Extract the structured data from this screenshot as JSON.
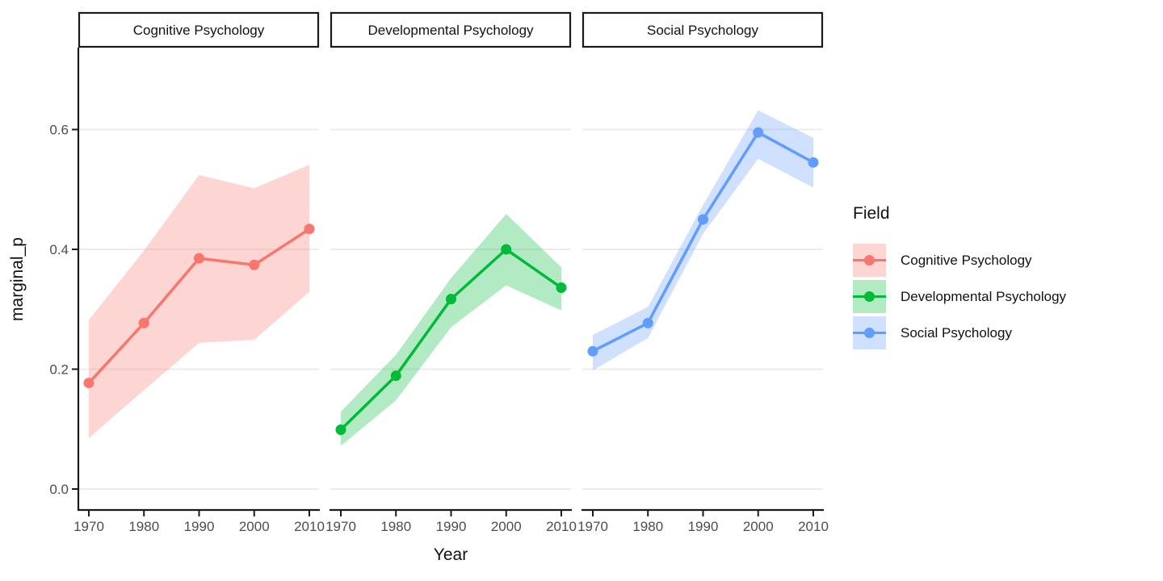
{
  "figure": {
    "background": "#FFFFFF"
  },
  "axes": {
    "x_label": "Year",
    "y_label": "marginal_p",
    "x_tick_labels": [
      "1970",
      "1980",
      "1990",
      "2000",
      "2010"
    ],
    "y_tick_labels": [
      "0.0",
      "0.2",
      "0.4",
      "0.6"
    ]
  },
  "legend": {
    "title": "Field",
    "position": "right",
    "entries": [
      {
        "label": "Cognitive Psychology",
        "color": "#F8766D",
        "fill": "rgba(248,118,109,0.3)"
      },
      {
        "label": "Developmental Psychology",
        "color": "#00BA38",
        "fill": "rgba(0,186,56,0.3)"
      },
      {
        "label": "Social Psychology",
        "color": "#619CFF",
        "fill": "rgba(97,156,255,0.3)"
      }
    ]
  },
  "chart_data": {
    "type": "line",
    "title": "",
    "xlabel": "Year",
    "ylabel": "marginal_p",
    "x": [
      1970,
      1980,
      1990,
      2000,
      2010
    ],
    "x_tick_labels": [
      "1970",
      "1980",
      "1990",
      "2000",
      "2010"
    ],
    "y_ticks": [
      0.0,
      0.2,
      0.4,
      0.6
    ],
    "y_tick_labels": [
      "0.0",
      "0.2",
      "0.4",
      "0.6"
    ],
    "ylim": [
      -0.035,
      0.735
    ],
    "grid": "horizontal major gridlines only",
    "legend_position": "right",
    "facets": [
      "Cognitive Psychology",
      "Developmental Psychology",
      "Social Psychology"
    ],
    "series": [
      {
        "name": "Cognitive Psychology",
        "facet": "Cognitive Psychology",
        "color": "#F8766D",
        "ribbon_fill": "rgba(248,118,109,0.3)",
        "values": [
          0.177,
          0.277,
          0.385,
          0.374,
          0.434
        ],
        "ribbon_lower": [
          0.085,
          0.165,
          0.244,
          0.249,
          0.329
        ],
        "ribbon_upper": [
          0.282,
          0.398,
          0.524,
          0.502,
          0.541
        ]
      },
      {
        "name": "Developmental Psychology",
        "facet": "Developmental Psychology",
        "color": "#00BA38",
        "ribbon_fill": "rgba(0,186,56,0.3)",
        "values": [
          0.099,
          0.189,
          0.317,
          0.4,
          0.336
        ],
        "ribbon_lower": [
          0.072,
          0.148,
          0.27,
          0.34,
          0.298
        ],
        "ribbon_upper": [
          0.129,
          0.224,
          0.352,
          0.459,
          0.37
        ]
      },
      {
        "name": "Social Psychology",
        "facet": "Social Psychology",
        "color": "#619CFF",
        "ribbon_fill": "rgba(97,156,255,0.3)",
        "values": [
          0.23,
          0.277,
          0.45,
          0.595,
          0.545
        ],
        "ribbon_lower": [
          0.198,
          0.252,
          0.426,
          0.551,
          0.503
        ],
        "ribbon_upper": [
          0.257,
          0.304,
          0.474,
          0.632,
          0.586
        ]
      }
    ]
  },
  "style_colors": {
    "grid": "#ECECEC",
    "axis_line": "#1A1A1A",
    "tick_label": "#4D4D4D",
    "title_text": "#111111",
    "strip_fill": "#FFFFFF",
    "strip_border": "#1A1A1A"
  }
}
